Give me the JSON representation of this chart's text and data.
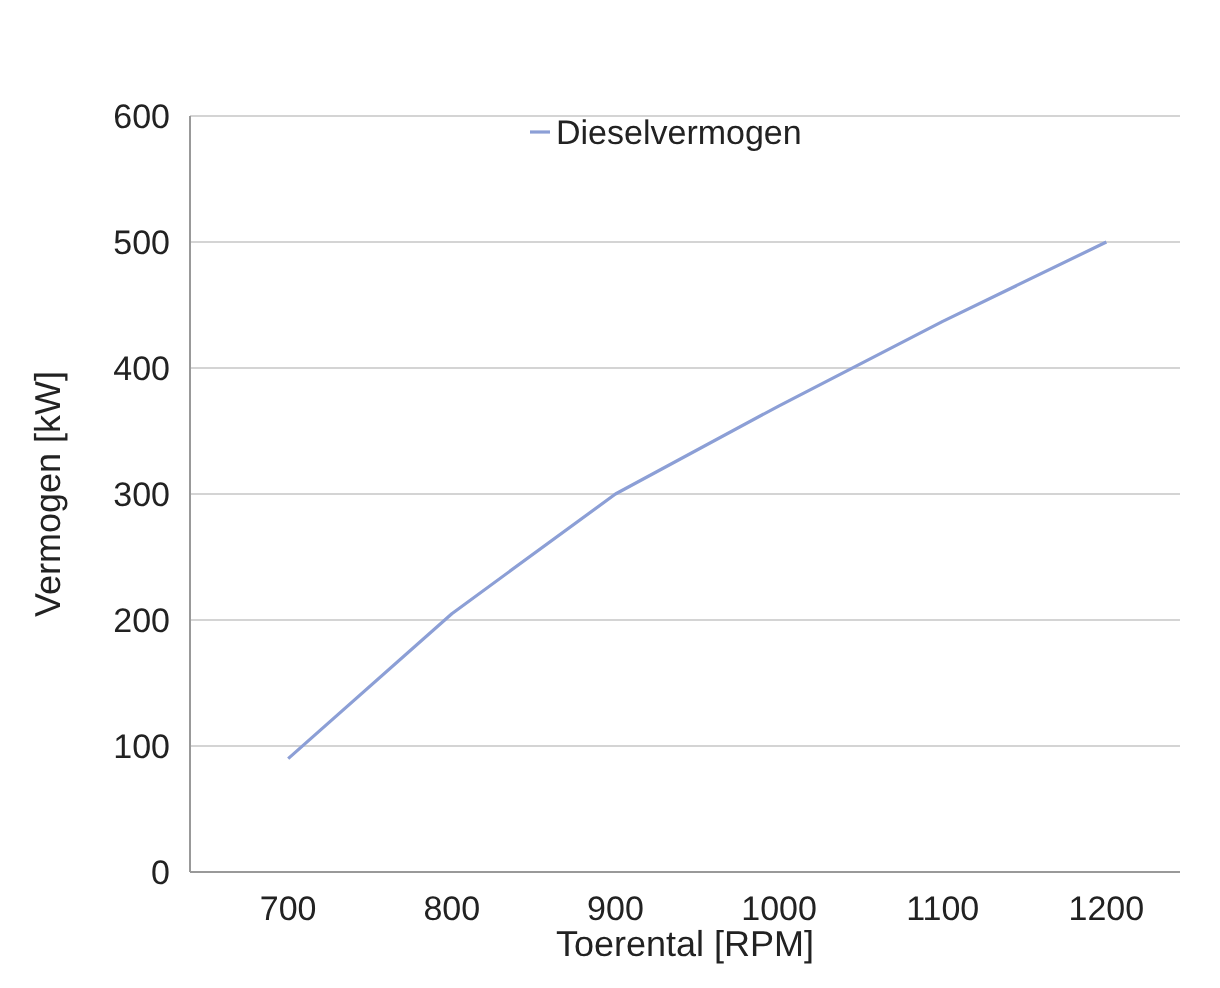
{
  "chart_data": {
    "type": "line",
    "xlabel": "Toerental [RPM]",
    "ylabel": "Vermogen [kW]",
    "x": [
      700,
      800,
      900,
      1000,
      1100,
      1200
    ],
    "series": [
      {
        "name": "Dieselvermogen",
        "color": "#8c9fd6",
        "values": [
          90,
          205,
          300,
          370,
          437,
          500
        ]
      }
    ],
    "xlim": [
      640,
      1245
    ],
    "ylim": [
      0,
      600
    ],
    "xticks": [
      700,
      800,
      900,
      1000,
      1100,
      1200
    ],
    "yticks": [
      0,
      100,
      200,
      300,
      400,
      500,
      600
    ],
    "grid": "y",
    "legend": "top",
    "marker": "none",
    "line_style": "solid"
  }
}
